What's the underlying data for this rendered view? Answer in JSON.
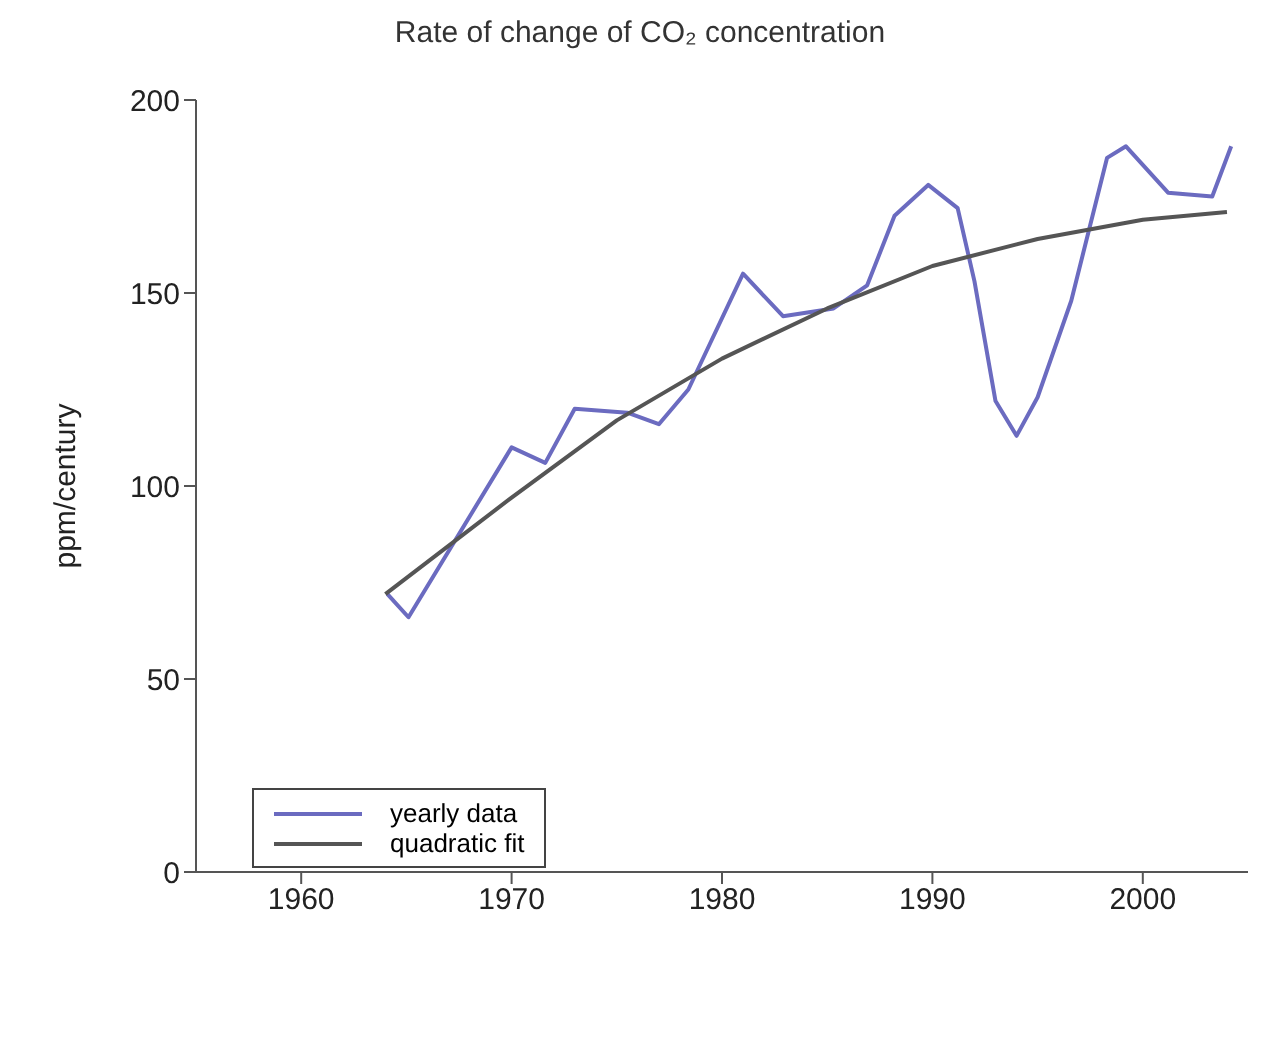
{
  "chart_data": {
    "type": "line",
    "title": "Rate of change of CO₂ concentration",
    "ylabel": "ppm/century",
    "xlim": [
      1955,
      2005
    ],
    "xticks": [
      1960,
      1970,
      1980,
      1990,
      2000
    ],
    "ylim": [
      0,
      200
    ],
    "yticks": [
      0,
      50,
      100,
      150,
      200
    ],
    "legend": "bottom left",
    "marker": "none",
    "line_style": "solid",
    "series": [
      {
        "name": "yearly data",
        "color": "#6b6bc0",
        "x": [
          1964.1,
          1965.1,
          1970,
          1971.6,
          1973,
          1975.5,
          1977,
          1978.4,
          1981,
          1982.9,
          1985.3,
          1986.9,
          1988.2,
          1989.8,
          1991.2,
          1992,
          1993,
          1994,
          1995,
          1996.6,
          1998.3,
          1999.2,
          2001.2,
          2003.3,
          2004.2
        ],
        "values": [
          72,
          66,
          110,
          106,
          120,
          119,
          116,
          125,
          155,
          144,
          146,
          152,
          170,
          178,
          172,
          153,
          122,
          113,
          123,
          148,
          185,
          188,
          176,
          175,
          188
        ]
      },
      {
        "name": "quadratic fit",
        "color": "#555555",
        "x": [
          1964,
          1970,
          1975,
          1980,
          1985,
          1990,
          1995,
          2000,
          2004
        ],
        "values": [
          72,
          97,
          117,
          133,
          146,
          157,
          164,
          169,
          171
        ]
      }
    ]
  }
}
